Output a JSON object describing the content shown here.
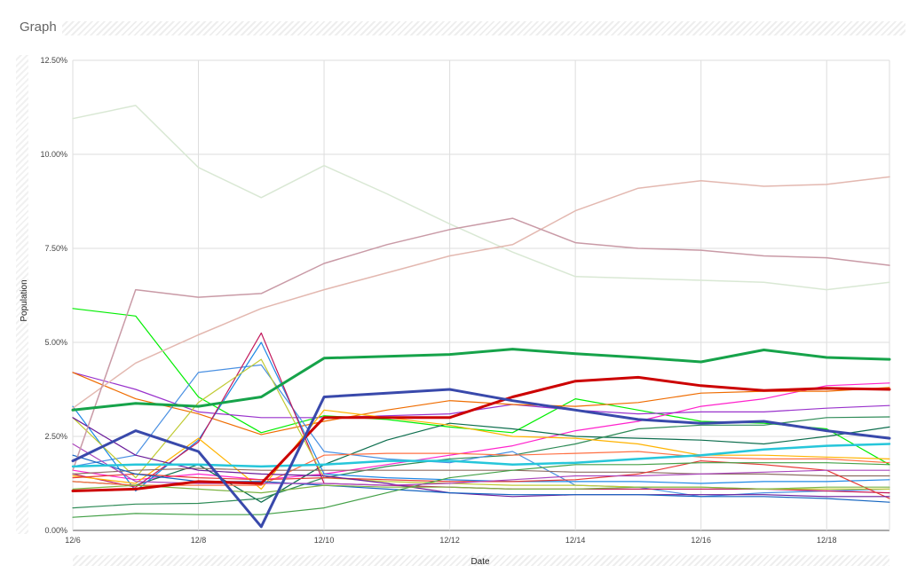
{
  "header": {
    "title": "Graph"
  },
  "chart_data": {
    "type": "line",
    "title": "Graph",
    "xlabel": "Date",
    "ylabel": "Population",
    "x": [
      "12/6",
      "12/7",
      "12/8",
      "12/9",
      "12/10",
      "12/11",
      "12/12",
      "12/13",
      "12/14",
      "12/15",
      "12/16",
      "12/17",
      "12/18",
      "12/19"
    ],
    "x_ticks": [
      "12/6",
      "12/8",
      "12/10",
      "12/12",
      "12/14",
      "12/16",
      "12/18"
    ],
    "y_ticks": [
      "0.00%",
      "2.50%",
      "5.00%",
      "7.50%",
      "10.00%",
      "12.50%"
    ],
    "ylim": [
      0,
      12.5
    ],
    "grid": true,
    "legend": "none",
    "series": [
      {
        "color": "#d9e8d4",
        "width": 1.5,
        "values": [
          10.95,
          11.3,
          9.65,
          8.85,
          9.7,
          8.95,
          8.15,
          7.4,
          6.75,
          6.7,
          6.65,
          6.6,
          6.4,
          6.6
        ]
      },
      {
        "color": "#e3b8b0",
        "width": 1.5,
        "values": [
          3.25,
          4.45,
          5.2,
          5.9,
          6.4,
          6.85,
          7.3,
          7.6,
          8.5,
          9.1,
          9.3,
          9.15,
          9.2,
          9.4
        ]
      },
      {
        "color": "#c99aa6",
        "width": 1.5,
        "values": [
          1.6,
          6.4,
          6.2,
          6.3,
          7.1,
          7.6,
          8.0,
          8.3,
          7.65,
          7.5,
          7.45,
          7.3,
          7.25,
          7.05
        ]
      },
      {
        "color": "#00ee00",
        "width": 1.2,
        "values": [
          5.9,
          5.7,
          3.55,
          2.6,
          3.05,
          2.95,
          2.75,
          2.6,
          3.5,
          3.2,
          2.9,
          2.85,
          2.7,
          1.75
        ]
      },
      {
        "color": "#16a34a",
        "width": 3,
        "values": [
          3.2,
          3.38,
          3.3,
          3.55,
          4.58,
          4.63,
          4.68,
          4.82,
          4.7,
          4.6,
          4.48,
          4.8,
          4.6,
          4.55
        ]
      },
      {
        "color": "#cc0000",
        "width": 3,
        "values": [
          1.05,
          1.1,
          1.3,
          1.25,
          3.0,
          3.0,
          3.0,
          3.55,
          3.97,
          4.07,
          3.85,
          3.72,
          3.78,
          3.75
        ]
      },
      {
        "color": "#3949ab",
        "width": 3,
        "values": [
          1.85,
          2.65,
          2.1,
          0.1,
          3.55,
          3.65,
          3.75,
          3.45,
          3.2,
          2.95,
          2.85,
          2.9,
          2.65,
          2.45
        ]
      },
      {
        "color": "#ff22cc",
        "width": 1.2,
        "values": [
          1.6,
          1.35,
          1.5,
          1.35,
          1.5,
          1.75,
          2.0,
          2.25,
          2.65,
          2.9,
          3.3,
          3.5,
          3.85,
          3.92
        ]
      },
      {
        "color": "#9932cc",
        "width": 1.2,
        "values": [
          4.2,
          3.75,
          3.15,
          3.0,
          3.0,
          3.05,
          3.1,
          3.35,
          3.2,
          3.1,
          3.15,
          3.15,
          3.25,
          3.32
        ]
      },
      {
        "color": "#ef6c00",
        "width": 1.2,
        "values": [
          4.2,
          3.5,
          3.1,
          2.55,
          2.9,
          3.2,
          3.45,
          3.35,
          3.3,
          3.4,
          3.65,
          3.7,
          3.7,
          3.8
        ]
      },
      {
        "color": "#0d6e4e",
        "width": 1.2,
        "values": [
          1.3,
          1.2,
          1.75,
          0.75,
          1.75,
          2.4,
          2.85,
          2.7,
          2.5,
          2.45,
          2.4,
          2.3,
          2.5,
          2.75
        ]
      },
      {
        "color": "#2e8b57",
        "width": 1.2,
        "values": [
          0.6,
          0.7,
          0.72,
          0.85,
          1.4,
          1.7,
          1.9,
          2.0,
          2.3,
          2.7,
          2.8,
          2.8,
          3.0,
          3.02
        ]
      },
      {
        "color": "#4a90e2",
        "width": 1.2,
        "values": [
          1.7,
          2.0,
          4.2,
          4.4,
          2.1,
          1.9,
          1.8,
          2.1,
          1.2,
          1.15,
          0.9,
          1.0,
          1.05,
          1.1
        ]
      },
      {
        "color": "#1e88e5",
        "width": 1.2,
        "values": [
          3.3,
          1.05,
          2.4,
          5.0,
          1.5,
          1.4,
          1.35,
          1.3,
          1.3,
          1.3,
          1.25,
          1.3,
          1.3,
          1.35
        ]
      },
      {
        "color": "#c2185b",
        "width": 1.2,
        "values": [
          1.5,
          1.15,
          2.35,
          5.25,
          1.25,
          1.2,
          1.15,
          1.1,
          1.1,
          1.1,
          1.1,
          1.1,
          1.05,
          1.0
        ]
      },
      {
        "color": "#c0ca33",
        "width": 1.2,
        "values": [
          3.0,
          1.4,
          3.4,
          4.55,
          1.4,
          1.3,
          1.25,
          1.2,
          1.2,
          1.15,
          1.15,
          1.1,
          1.1,
          1.1
        ]
      },
      {
        "color": "#ffb300",
        "width": 1.2,
        "values": [
          1.45,
          1.25,
          2.45,
          1.1,
          3.2,
          3.0,
          2.8,
          2.5,
          2.45,
          2.3,
          2.0,
          2.0,
          1.95,
          1.9
        ]
      },
      {
        "color": "#26c6da",
        "width": 2.5,
        "values": [
          1.7,
          1.75,
          1.75,
          1.7,
          1.75,
          1.85,
          1.85,
          1.75,
          1.8,
          1.9,
          2.0,
          2.15,
          2.25,
          2.3
        ]
      },
      {
        "color": "#ff7043",
        "width": 1.2,
        "values": [
          1.3,
          1.2,
          1.2,
          1.2,
          2.0,
          2.05,
          2.05,
          2.0,
          2.05,
          2.1,
          1.95,
          1.9,
          1.9,
          1.8
        ]
      },
      {
        "color": "#8d6e63",
        "width": 1.2,
        "values": [
          1.5,
          1.6,
          1.65,
          1.6,
          1.6,
          1.6,
          1.6,
          1.6,
          1.55,
          1.55,
          1.5,
          1.5,
          1.45,
          1.45
        ]
      },
      {
        "color": "#e53935",
        "width": 1.2,
        "values": [
          1.4,
          1.5,
          1.4,
          1.35,
          1.4,
          1.35,
          1.3,
          1.3,
          1.35,
          1.5,
          1.85,
          1.75,
          1.6,
          0.85
        ]
      },
      {
        "color": "#6a1b9a",
        "width": 1.2,
        "values": [
          3.0,
          2.0,
          1.6,
          1.5,
          1.45,
          1.25,
          1.0,
          0.9,
          0.95,
          0.95,
          0.95,
          0.95,
          0.9,
          0.9
        ]
      },
      {
        "color": "#1565c0",
        "width": 1.2,
        "values": [
          2.0,
          1.5,
          1.3,
          1.3,
          1.2,
          1.1,
          1.0,
          0.95,
          0.95,
          0.95,
          0.9,
          0.9,
          0.85,
          0.75
        ]
      },
      {
        "color": "#43a047",
        "width": 1.2,
        "values": [
          0.35,
          0.45,
          0.42,
          0.42,
          0.6,
          1.0,
          1.4,
          1.6,
          1.75,
          1.75,
          1.8,
          1.8,
          1.8,
          1.75
        ]
      },
      {
        "color": "#ab47bc",
        "width": 1.2,
        "values": [
          2.3,
          1.3,
          1.25,
          1.25,
          1.25,
          1.2,
          1.25,
          1.35,
          1.45,
          1.45,
          1.5,
          1.55,
          1.6,
          1.6
        ]
      },
      {
        "color": "#7cb342",
        "width": 1.2,
        "values": [
          1.1,
          1.2,
          1.1,
          1.0,
          1.2,
          1.15,
          1.15,
          1.1,
          1.1,
          1.15,
          1.15,
          1.1,
          1.15,
          1.15
        ]
      }
    ]
  }
}
